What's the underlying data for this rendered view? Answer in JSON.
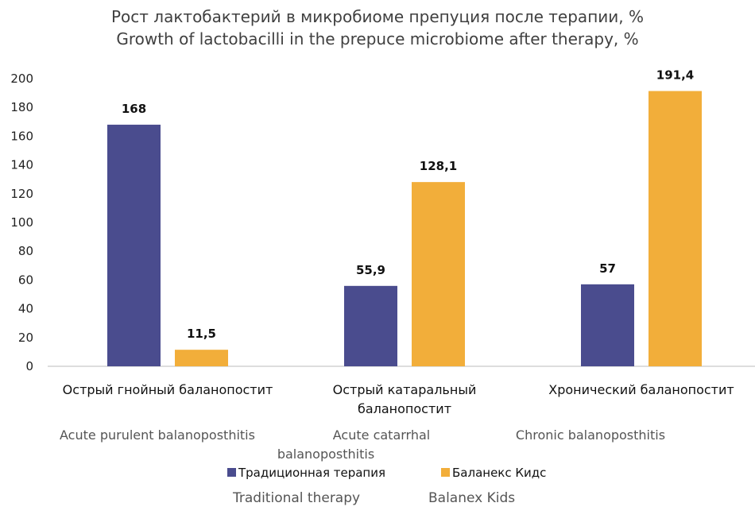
{
  "chart_data": {
    "type": "bar",
    "title": [
      "Рост лактобактерий в микробиоме препуция после терапии, %",
      "Growth of lactobacilli in the prepuce microbiome after therapy, %"
    ],
    "categories": [
      [
        "Острый гнойный баланопостит"
      ],
      [
        "Острый катаральный",
        "баланопостит"
      ],
      [
        "Хронический баланопостит"
      ]
    ],
    "categories_en": [
      [
        "Acute purulent balanoposthitis"
      ],
      [
        "Acute catarrhal",
        "balanoposthitis"
      ],
      [
        "Chronic balanoposthitis"
      ]
    ],
    "series": [
      {
        "name": "Традиционная терапия",
        "name_en": "Traditional therapy",
        "color": "#4a4c8e",
        "values": [
          168,
          55.9,
          57
        ],
        "labels": [
          "168",
          "55,9",
          "57"
        ]
      },
      {
        "name": "Баланекс Кидс",
        "name_en": "Balanex Kids",
        "color": "#f2ae3a",
        "values": [
          11.5,
          128.1,
          191.4
        ],
        "labels": [
          "11,5",
          "128,1",
          "191,4"
        ]
      }
    ],
    "ylim": [
      0,
      200
    ],
    "yticks": [
      0,
      20,
      40,
      60,
      80,
      100,
      120,
      140,
      160,
      180,
      200
    ],
    "grid": false,
    "legend": "bottom",
    "xlabel": "",
    "ylabel": ""
  }
}
